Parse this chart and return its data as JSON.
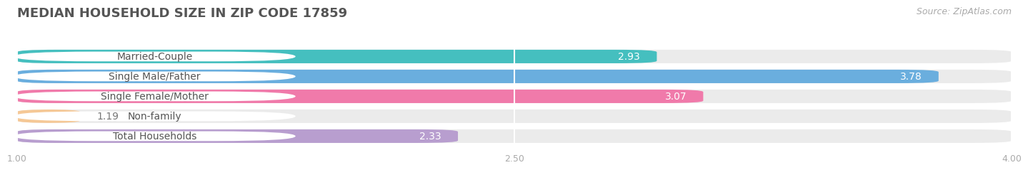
{
  "title": "MEDIAN HOUSEHOLD SIZE IN ZIP CODE 17859",
  "source": "Source: ZipAtlas.com",
  "categories": [
    "Married-Couple",
    "Single Male/Father",
    "Single Female/Mother",
    "Non-family",
    "Total Households"
  ],
  "values": [
    2.93,
    3.78,
    3.07,
    1.19,
    2.33
  ],
  "bar_colors": [
    "#45bfbf",
    "#6aaede",
    "#f07aaa",
    "#f5c896",
    "#b89ecf"
  ],
  "xlim": [
    1.0,
    4.0
  ],
  "xticks": [
    1.0,
    2.5,
    4.0
  ],
  "xtick_labels": [
    "1.00",
    "2.50",
    "4.00"
  ],
  "background_color": "#ffffff",
  "bar_bg_color": "#ebebeb",
  "title_fontsize": 13,
  "label_fontsize": 10,
  "value_fontsize": 10,
  "source_fontsize": 9,
  "bar_height": 0.68,
  "figsize": [
    14.06,
    2.68
  ]
}
